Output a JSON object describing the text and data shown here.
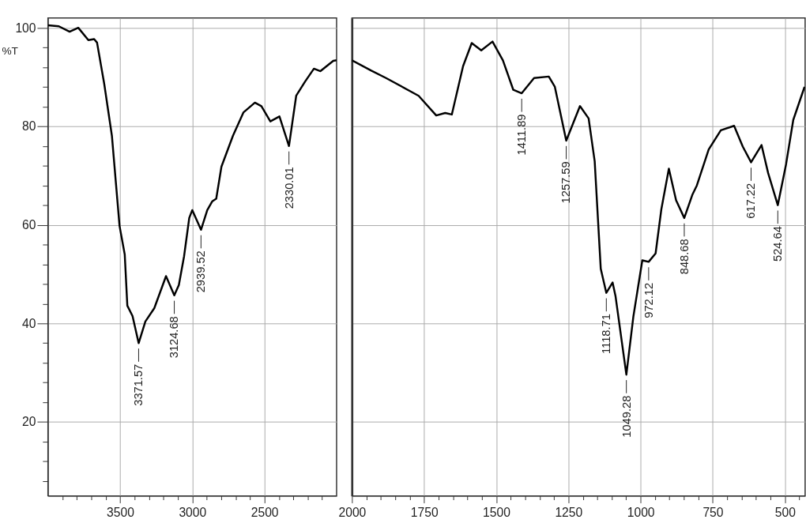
{
  "chart_data": [
    {
      "type": "line",
      "ylabel": "%T",
      "x": [
        4000,
        3925,
        3850,
        3790,
        3720,
        3680,
        3660,
        3610,
        3557,
        3504,
        3468,
        3450,
        3414,
        3371.57,
        3325,
        3263,
        3182,
        3124.68,
        3093,
        3057,
        3021,
        3000,
        2939.52,
        2896,
        2861,
        2834,
        2798,
        2718,
        2646,
        2566,
        2521,
        2459,
        2396,
        2330.01,
        2280,
        2218,
        2157,
        2112,
        2023,
        2000
      ],
      "series": [
        {
          "color": "#000000",
          "values": [
            100.5,
            100.3,
            99.2,
            100,
            97.5,
            97.7,
            97,
            88.6,
            78.1,
            59.8,
            54,
            43.6,
            41.5,
            36,
            40.4,
            43.1,
            49.6,
            45.7,
            47.8,
            53.6,
            61.4,
            63,
            59,
            63,
            64.8,
            65.3,
            71.8,
            78.1,
            82.8,
            84.8,
            84.1,
            81,
            82,
            76,
            86.2,
            89.1,
            91.7,
            91.2,
            93.3,
            93.4
          ]
        }
      ],
      "annotations": [
        {
          "text": "3371.57",
          "x": 3371.57,
          "y": 36
        },
        {
          "text": "3124.68",
          "x": 3124.68,
          "y": 45.7
        },
        {
          "text": "2939.52",
          "x": 2939.52,
          "y": 59
        },
        {
          "text": "2330.01",
          "x": 2330.01,
          "y": 76
        }
      ],
      "xlim": [
        4000,
        2000
      ],
      "xticks": [
        {
          "value": 3900,
          "label": null
        },
        {
          "value": 3800,
          "label": null
        },
        {
          "value": 3700,
          "label": null
        },
        {
          "value": 3600,
          "label": null
        },
        3500,
        {
          "value": 3400,
          "label": null
        },
        {
          "value": 3300,
          "label": null
        },
        {
          "value": 3200,
          "label": null
        },
        {
          "value": 3100,
          "label": null
        },
        3000,
        {
          "value": 2900,
          "label": null
        },
        {
          "value": 2800,
          "label": null
        },
        {
          "value": 2700,
          "label": null
        },
        {
          "value": 2600,
          "label": null
        },
        2500,
        {
          "value": 2400,
          "label": null
        },
        {
          "value": 2300,
          "label": null
        },
        {
          "value": 2200,
          "label": null
        },
        {
          "value": 2100,
          "label": null
        }
      ],
      "ylim": [
        5,
        102
      ],
      "yticks": [
        {
          "value": 8,
          "label": null
        },
        {
          "value": 12,
          "label": null
        },
        {
          "value": 16,
          "label": null
        },
        20,
        {
          "value": 24,
          "label": null
        },
        {
          "value": 28,
          "label": null
        },
        {
          "value": 32,
          "label": null
        },
        {
          "value": 36,
          "label": null
        },
        40,
        {
          "value": 44,
          "label": null
        },
        {
          "value": 48,
          "label": null
        },
        {
          "value": 52,
          "label": null
        },
        {
          "value": 56,
          "label": null
        },
        60,
        {
          "value": 64,
          "label": null
        },
        {
          "value": 68,
          "label": null
        },
        {
          "value": 72,
          "label": null
        },
        {
          "value": 76,
          "label": null
        },
        80,
        {
          "value": 84,
          "label": null
        },
        {
          "value": 88,
          "label": null
        },
        {
          "value": 92,
          "label": null
        },
        {
          "value": 96,
          "label": null
        },
        100
      ],
      "grid": true,
      "marker": "none",
      "line_style": "solid"
    },
    {
      "type": "line",
      "x": [
        2000,
        1933,
        1882,
        1769,
        1708,
        1677,
        1654,
        1615,
        1585,
        1552,
        1513,
        1477,
        1441,
        1411.89,
        1369,
        1318,
        1297,
        1257.59,
        1210,
        1180,
        1159,
        1138,
        1118.71,
        1097,
        1087,
        1049.28,
        1025,
        994,
        972.12,
        948,
        928,
        902,
        877,
        848.68,
        820,
        805,
        764,
        722,
        676,
        646,
        617.22,
        581,
        558,
        524.64,
        496,
        471,
        432
      ],
      "series": [
        {
          "color": "#000000",
          "values": [
            93.4,
            91.3,
            89.8,
            86.2,
            82.2,
            82.7,
            82.4,
            92.2,
            96.9,
            95.4,
            97.2,
            93.4,
            87.4,
            86.7,
            89.8,
            90.1,
            88,
            77.1,
            84.1,
            81.6,
            72.9,
            51.1,
            46.2,
            48.3,
            45.6,
            29.6,
            41.4,
            52.8,
            52.5,
            54.2,
            63.2,
            71.4,
            65,
            61.4,
            66.2,
            68,
            75.3,
            79.2,
            80.1,
            75.9,
            72.7,
            76.2,
            70.5,
            64,
            72.3,
            81.3,
            88
          ]
        }
      ],
      "annotations": [
        {
          "text": "1411.89",
          "x": 1411.89,
          "y": 86.7
        },
        {
          "text": "1257.59",
          "x": 1257.59,
          "y": 77.1
        },
        {
          "text": "1118.71",
          "x": 1118.71,
          "y": 46.2
        },
        {
          "text": "1049.28",
          "x": 1049.28,
          "y": 29.6
        },
        {
          "text": "972.12",
          "x": 972.12,
          "y": 52.5
        },
        {
          "text": "848.68",
          "x": 848.68,
          "y": 61.4
        },
        {
          "text": "617.22",
          "x": 617.22,
          "y": 72.7
        },
        {
          "text": "524.64",
          "x": 524.64,
          "y": 64
        }
      ],
      "xlim": [
        2000,
        430
      ],
      "xticks": [
        2000,
        {
          "value": 1950,
          "label": null
        },
        {
          "value": 1900,
          "label": null
        },
        {
          "value": 1850,
          "label": null
        },
        {
          "value": 1800,
          "label": null
        },
        1750,
        {
          "value": 1700,
          "label": null
        },
        {
          "value": 1650,
          "label": null
        },
        {
          "value": 1600,
          "label": null
        },
        {
          "value": 1550,
          "label": null
        },
        1500,
        {
          "value": 1450,
          "label": null
        },
        {
          "value": 1400,
          "label": null
        },
        {
          "value": 1350,
          "label": null
        },
        {
          "value": 1300,
          "label": null
        },
        1250,
        {
          "value": 1200,
          "label": null
        },
        {
          "value": 1150,
          "label": null
        },
        {
          "value": 1100,
          "label": null
        },
        {
          "value": 1050,
          "label": null
        },
        1000,
        {
          "value": 950,
          "label": null
        },
        {
          "value": 900,
          "label": null
        },
        {
          "value": 850,
          "label": null
        },
        {
          "value": 800,
          "label": null
        },
        750,
        {
          "value": 700,
          "label": null
        },
        {
          "value": 650,
          "label": null
        },
        {
          "value": 600,
          "label": null
        },
        {
          "value": 550,
          "label": null
        },
        500,
        {
          "value": 450,
          "label": null
        }
      ],
      "ylim": [
        5,
        102
      ],
      "yticks": [
        20,
        40,
        60,
        80,
        100
      ],
      "tick_labels": "x",
      "grid": true,
      "marker": "none",
      "line_style": "solid"
    }
  ]
}
